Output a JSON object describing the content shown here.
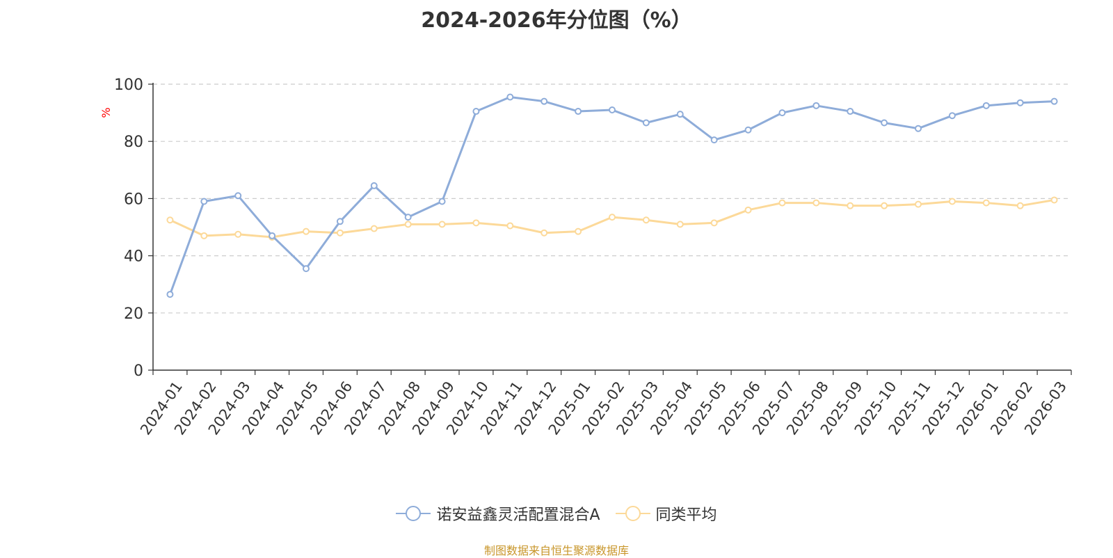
{
  "title": "2024-2026年分位图（%）",
  "source_note": "制图数据来自恒生聚源数据库",
  "colors": {
    "series_a": "#8eacd9",
    "series_b": "#fcd999",
    "ylabel": "#ff0000",
    "source": "#c8962a",
    "grid": "#cccccc",
    "axis": "#333333"
  },
  "chart_data": {
    "type": "line",
    "title": "2024-2026年分位图（%）",
    "xlabel": "",
    "ylabel": "%",
    "ylim": [
      0,
      100
    ],
    "yticks": [
      0,
      20,
      40,
      60,
      80,
      100
    ],
    "grid": true,
    "legend_position": "bottom-center",
    "categories": [
      "2024-01",
      "2024-02",
      "2024-03",
      "2024-04",
      "2024-05",
      "2024-06",
      "2024-07",
      "2024-08",
      "2024-09",
      "2024-10",
      "2024-11",
      "2024-12",
      "2025-01",
      "2025-02",
      "2025-03",
      "2025-04",
      "2025-05",
      "2025-06",
      "2025-07",
      "2025-08",
      "2025-09",
      "2025-10",
      "2025-11",
      "2025-12",
      "2026-01",
      "2026-02",
      "2026-03"
    ],
    "series": [
      {
        "name": "诺安益鑫灵活配置混合A",
        "values": [
          26.5,
          59,
          61,
          47,
          35.5,
          52,
          64.5,
          53.5,
          59,
          90.5,
          95.5,
          94,
          90.5,
          91,
          86.5,
          89.5,
          80.5,
          84,
          90,
          92.5,
          90.5,
          86.5,
          84.5,
          89,
          92.5,
          93.5,
          94
        ]
      },
      {
        "name": "同类平均",
        "values": [
          52.5,
          47,
          47.5,
          46.5,
          48.5,
          48,
          49.5,
          51,
          51,
          51.5,
          50.5,
          48,
          48.5,
          53.5,
          52.5,
          51,
          51.5,
          56,
          58.5,
          58.5,
          57.5,
          57.5,
          58,
          59,
          58.5,
          57.5,
          59.5
        ]
      }
    ]
  }
}
